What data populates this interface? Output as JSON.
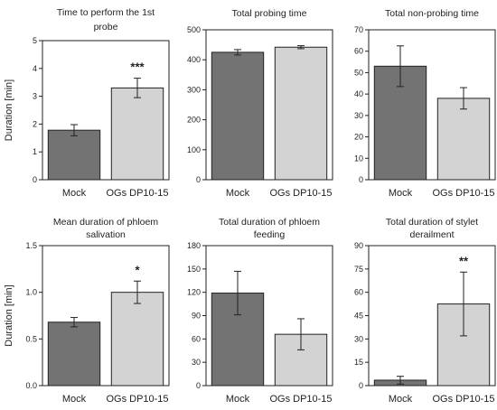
{
  "chart_data": [
    {
      "type": "bar",
      "title": [
        "Time to perform the 1st",
        "probe"
      ],
      "ylabel": "Duration [min]",
      "categories": [
        "Mock",
        "OGs DP10-15"
      ],
      "values": [
        1.78,
        3.3
      ],
      "errors": [
        0.2,
        0.35
      ],
      "significance": [
        "",
        "***"
      ],
      "ylim": [
        0,
        5
      ],
      "yticks": [
        "0",
        "1",
        "2",
        "3",
        "4",
        "5"
      ],
      "colors": [
        "#737373",
        "#d3d3d3"
      ]
    },
    {
      "type": "bar",
      "title": [
        "Total probing time"
      ],
      "ylabel": "",
      "categories": [
        "Mock",
        "OGs DP10-15"
      ],
      "values": [
        425,
        442
      ],
      "errors": [
        9,
        5
      ],
      "significance": [
        "",
        ""
      ],
      "ylim": [
        0,
        500
      ],
      "yticks": [
        "0",
        "100",
        "200",
        "300",
        "400",
        "500"
      ],
      "colors": [
        "#737373",
        "#d3d3d3"
      ]
    },
    {
      "type": "bar",
      "title": [
        "Total non-probing time"
      ],
      "ylabel": "",
      "categories": [
        "Mock",
        "OGs DP10-15"
      ],
      "values": [
        53,
        38
      ],
      "errors": [
        9.5,
        5
      ],
      "significance": [
        "",
        ""
      ],
      "ylim": [
        0,
        70
      ],
      "yticks": [
        "0",
        "10",
        "20",
        "30",
        "40",
        "50",
        "60",
        "70"
      ],
      "colors": [
        "#737373",
        "#d3d3d3"
      ]
    },
    {
      "type": "bar",
      "title": [
        "Mean duration of phloem",
        "salivation"
      ],
      "ylabel": "Duration [min]",
      "categories": [
        "Mock",
        "OGs DP10-15"
      ],
      "values": [
        0.68,
        1.0
      ],
      "errors": [
        0.05,
        0.12
      ],
      "significance": [
        "",
        "*"
      ],
      "ylim": [
        0,
        1.5
      ],
      "yticks": [
        "0.0",
        "0.5",
        "1.0",
        "1.5"
      ],
      "colors": [
        "#737373",
        "#d3d3d3"
      ]
    },
    {
      "type": "bar",
      "title": [
        "Total duration of phloem",
        "feeding"
      ],
      "ylabel": "",
      "categories": [
        "Mock",
        "OGs DP10-15"
      ],
      "values": [
        119,
        66
      ],
      "errors": [
        28,
        20
      ],
      "significance": [
        "",
        ""
      ],
      "ylim": [
        0,
        180
      ],
      "yticks": [
        "0",
        "30",
        "60",
        "90",
        "120",
        "150",
        "180"
      ],
      "colors": [
        "#737373",
        "#d3d3d3"
      ]
    },
    {
      "type": "bar",
      "title": [
        "Total duration of stylet",
        "derailment"
      ],
      "ylabel": "",
      "categories": [
        "Mock",
        "OGs DP10-15"
      ],
      "values": [
        3.5,
        52.5
      ],
      "errors": [
        2.5,
        20.5
      ],
      "significance": [
        "",
        "**"
      ],
      "ylim": [
        0,
        90
      ],
      "yticks": [
        "0",
        "15",
        "30",
        "45",
        "60",
        "75",
        "90"
      ],
      "colors": [
        "#737373",
        "#d3d3d3"
      ]
    }
  ]
}
